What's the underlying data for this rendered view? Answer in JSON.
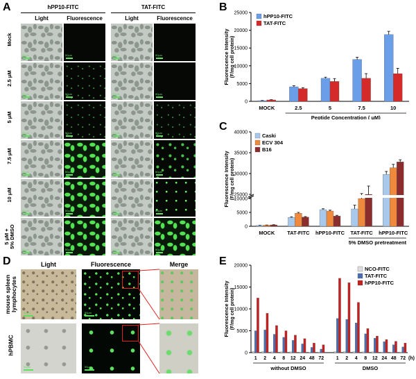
{
  "panels": {
    "A": "A",
    "B": "B",
    "C": "C",
    "D": "D",
    "E": "E"
  },
  "panelA": {
    "group_headers": [
      "hPP10-FITC",
      "TAT-FITC"
    ],
    "col_headers": [
      "Light",
      "Fluorescence",
      "Light",
      "Fluorescence"
    ],
    "row_labels": [
      "Mock",
      "2.5 μM",
      "5 μM",
      "7.5 μM",
      "10 μM",
      "5 μM +\n5% DMSO"
    ],
    "scale_text": "50μm"
  },
  "panelD": {
    "col_headers": [
      "Light",
      "Fluorescence",
      "Merge"
    ],
    "row_labels": [
      "mouse spleen\nlymphocytes",
      "hPBMC"
    ],
    "scale_text": "50μm"
  },
  "chart_data": [
    {
      "panel": "B",
      "type": "bar",
      "categories": [
        "MOCK",
        "2.5",
        "5",
        "7.5",
        "10"
      ],
      "series": [
        {
          "name": "hPP10-FITC",
          "values": [
            200,
            4100,
            6500,
            11800,
            18800
          ],
          "errors": [
            50,
            300,
            300,
            600,
            900
          ],
          "color": "#6a9ee8"
        },
        {
          "name": "TAT-FITC",
          "values": [
            400,
            3600,
            5600,
            6500,
            7800
          ],
          "errors": [
            60,
            250,
            800,
            1300,
            1500
          ],
          "color": "#d42a2a"
        }
      ],
      "ylabel": "Fluorescence Intensity\n(F/mg cell protein)",
      "xlabel": "Peptide Concentration ( μM)",
      "ylim": [
        0,
        25000
      ],
      "yticks": [
        0,
        5000,
        10000,
        15000,
        20000,
        25000
      ],
      "legend": "top-left"
    },
    {
      "panel": "C",
      "type": "bar",
      "categories": [
        "MOCK",
        "TAT-FITC",
        "hPP10-FITC",
        "TAT-FITC",
        "hPP10-FITC"
      ],
      "group_label": "5% DMSO pretreatment",
      "series": [
        {
          "name": "Caski",
          "values": [
            300,
            3200,
            6000,
            21500,
            29800
          ],
          "errors": [
            50,
            200,
            300,
            900,
            700
          ],
          "color": "#a8c8ec"
        },
        {
          "name": "ECV 304",
          "values": [
            400,
            4700,
            5500,
            24000,
            31400
          ],
          "errors": [
            60,
            300,
            300,
            1200,
            800
          ],
          "color": "#ef8a3c"
        },
        {
          "name": "B16",
          "values": [
            500,
            3300,
            3700,
            25000,
            32800
          ],
          "errors": [
            60,
            200,
            250,
            2000,
            500
          ],
          "color": "#8b2d2d"
        }
      ],
      "ylabel": "Fluorescence Intensity\n(F/mg cell protein)",
      "yticks_low": [
        0,
        5000,
        10000
      ],
      "yticks_high": [
        25000,
        30000,
        35000,
        40000
      ],
      "legend": "top-left"
    },
    {
      "panel": "E",
      "type": "bar",
      "groups": [
        {
          "label": "without DMSO",
          "times": [
            "1",
            "2",
            "4",
            "8",
            "12",
            "24",
            "48",
            "72"
          ]
        },
        {
          "label": "DMSO",
          "times": [
            "1",
            "2",
            "4",
            "8",
            "12",
            "24",
            "48",
            "72"
          ]
        }
      ],
      "time_unit": "(h)",
      "series": [
        {
          "name": "NCO-FITC",
          "values": [
            [
              300,
              300,
              200,
              200,
              200,
              150,
              150,
              150
            ],
            [
              300,
              300,
              250,
              200,
              200,
              150,
              150,
              150
            ]
          ],
          "color": "#dddddd"
        },
        {
          "name": "TAT-FITC",
          "values": [
            [
              5000,
              5200,
              4200,
              3500,
              2800,
              2000,
              1200,
              800
            ],
            [
              7800,
              7600,
              6800,
              4300,
              3300,
              2500,
              1800,
              1300
            ]
          ],
          "color": "#4a6fb0"
        },
        {
          "name": "hPP10-FITC",
          "values": [
            [
              12500,
              9000,
              6200,
              5000,
              4000,
              3200,
              2200,
              1800
            ],
            [
              17000,
              16000,
              11500,
              5500,
              3800,
              3000,
              2600,
              2200
            ]
          ],
          "color": "#c42020"
        }
      ],
      "ylabel": "Fluorescence Intensity\n(F/mg cell protein)",
      "ylim": [
        0,
        20000
      ],
      "yticks": [
        0,
        5000,
        10000,
        15000,
        20000
      ],
      "legend": "top-right"
    }
  ]
}
